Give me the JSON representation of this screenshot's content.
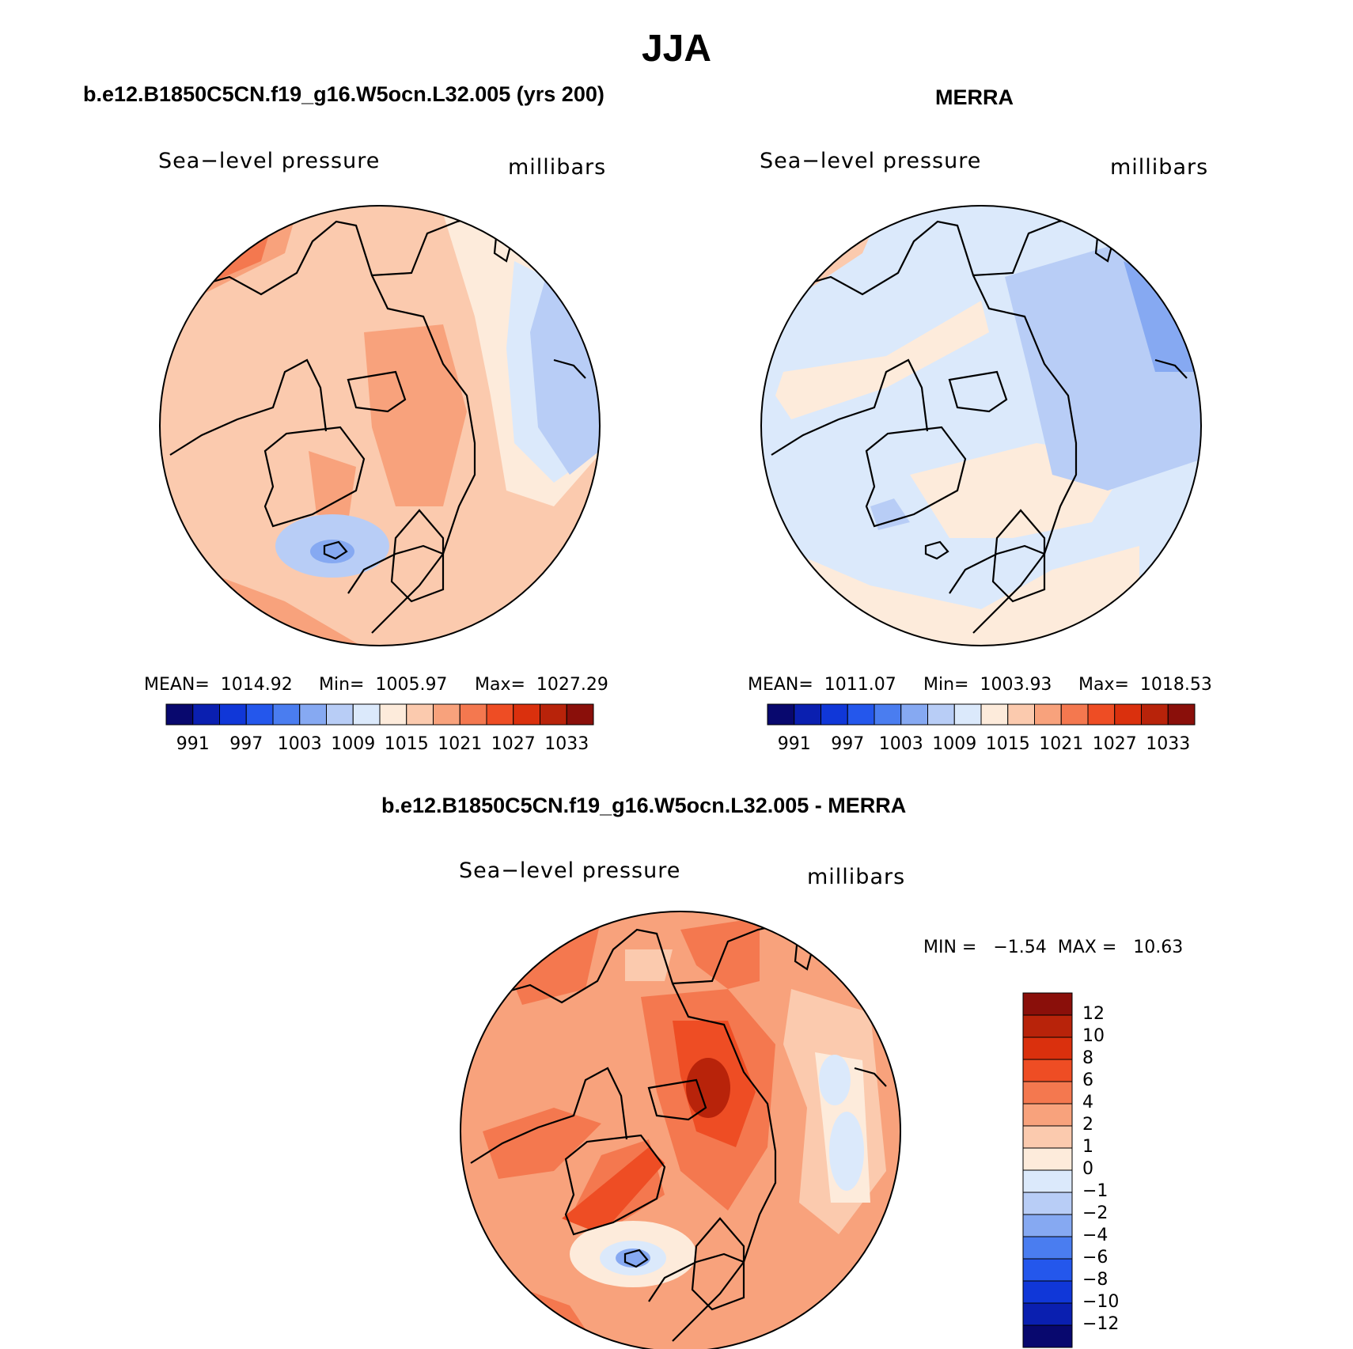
{
  "figure": {
    "title": "JJA"
  },
  "panels": {
    "model": {
      "title": "b.e12.B1850C5CN.f19_g16.W5ocn.L32.005 (yrs 200)",
      "variable": "Sea−level pressure",
      "units": "millibars",
      "mean_label": "MEAN=  1014.92",
      "min_label": "Min=  1005.97",
      "max_label": "Max=  1027.29"
    },
    "obs": {
      "title": "MERRA",
      "variable": "Sea−level pressure",
      "units": "millibars",
      "mean_label": "MEAN=  1011.07",
      "min_label": "Min=  1003.93",
      "max_label": "Max=  1018.53"
    },
    "diff": {
      "title": "b.e12.B1850C5CN.f19_g16.W5ocn.L32.005 - MERRA",
      "variable": "Sea−level pressure",
      "units": "millibars",
      "minmax_label": "MIN =   −1.54  MAX =   10.63"
    }
  },
  "colorbar_abs": {
    "colors": [
      "#08086e",
      "#0a1fb0",
      "#1037d8",
      "#2457ec",
      "#4a7df0",
      "#86a9f2",
      "#b8cdf6",
      "#dbe9fb",
      "#fdebdb",
      "#fbcaae",
      "#f8a27c",
      "#f4784f",
      "#ee4d24",
      "#da300d",
      "#b8230a",
      "#8a0f0a"
    ],
    "tick_labels": [
      "991",
      "997",
      "1003",
      "1009",
      "1015",
      "1021",
      "1027",
      "1033"
    ]
  },
  "colorbar_diff": {
    "colors": [
      "#8a0f0a",
      "#b8230a",
      "#da300d",
      "#ee4d24",
      "#f4784f",
      "#f8a27c",
      "#fbcaae",
      "#fdebdb",
      "#dbe9fb",
      "#b8cdf6",
      "#86a9f2",
      "#4a7df0",
      "#2457ec",
      "#1037d8",
      "#0a1fb0",
      "#08086e"
    ],
    "tick_labels": [
      "12",
      "10",
      "8",
      "6",
      "4",
      "2",
      "1",
      "0",
      "−1",
      "−2",
      "−4",
      "−6",
      "−8",
      "−10",
      "−12"
    ]
  },
  "chart_data": [
    {
      "type": "heatmap",
      "title": "b.e12.B1850C5CN.f19_g16.W5ocn.L32.005 (yrs 200)",
      "variable": "Sea-level pressure",
      "units": "millibars",
      "projection": "north polar stereographic",
      "mean": 1014.92,
      "min": 1005.97,
      "max": 1027.29,
      "contour_levels": [
        991,
        994,
        997,
        1000,
        1003,
        1006,
        1009,
        1012,
        1015,
        1018,
        1021,
        1024,
        1027,
        1030,
        1033
      ]
    },
    {
      "type": "heatmap",
      "title": "MERRA",
      "variable": "Sea-level pressure",
      "units": "millibars",
      "projection": "north polar stereographic",
      "mean": 1011.07,
      "min": 1003.93,
      "max": 1018.53,
      "contour_levels": [
        991,
        994,
        997,
        1000,
        1003,
        1006,
        1009,
        1012,
        1015,
        1018,
        1021,
        1024,
        1027,
        1030,
        1033
      ]
    },
    {
      "type": "heatmap",
      "title": "b.e12.B1850C5CN.f19_g16.W5ocn.L32.005 - MERRA",
      "variable": "Sea-level pressure",
      "units": "millibars",
      "projection": "north polar stereographic",
      "min": -1.54,
      "max": 10.63,
      "contour_levels": [
        -12,
        -10,
        -8,
        -6,
        -4,
        -2,
        -1,
        0,
        1,
        2,
        4,
        6,
        8,
        10,
        12
      ]
    }
  ]
}
